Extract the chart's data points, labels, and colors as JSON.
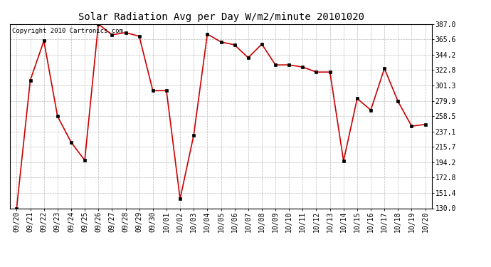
{
  "title": "Solar Radiation Avg per Day W/m2/minute 20101020",
  "copyright": "Copyright 2010 Cartronics.com",
  "labels": [
    "09/20",
    "09/21",
    "09/22",
    "09/23",
    "09/24",
    "09/25",
    "09/26",
    "09/27",
    "09/28",
    "09/29",
    "09/30",
    "10/01",
    "10/02",
    "10/03",
    "10/04",
    "10/05",
    "10/06",
    "10/07",
    "10/08",
    "10/09",
    "10/10",
    "10/11",
    "10/12",
    "10/13",
    "10/14",
    "10/15",
    "10/16",
    "10/17",
    "10/18",
    "10/19",
    "10/20"
  ],
  "values": [
    130.0,
    308.5,
    363.5,
    258.5,
    222.0,
    197.0,
    387.0,
    372.0,
    375.0,
    370.0,
    294.0,
    294.0,
    143.0,
    232.0,
    373.0,
    362.0,
    358.0,
    340.0,
    359.0,
    330.0,
    330.0,
    327.0,
    320.0,
    320.0,
    196.0,
    283.0,
    267.0,
    325.0,
    279.0,
    244.5,
    247.0
  ],
  "line_color": "#cc0000",
  "marker_color": "#000000",
  "background_color": "#ffffff",
  "grid_color": "#bbbbbb",
  "ylim": [
    130.0,
    387.0
  ],
  "yticks": [
    130.0,
    151.4,
    172.8,
    194.2,
    215.7,
    237.1,
    258.5,
    279.9,
    301.3,
    322.8,
    344.2,
    365.6,
    387.0
  ],
  "title_fontsize": 10,
  "tick_fontsize": 7,
  "copyright_fontsize": 6.5
}
